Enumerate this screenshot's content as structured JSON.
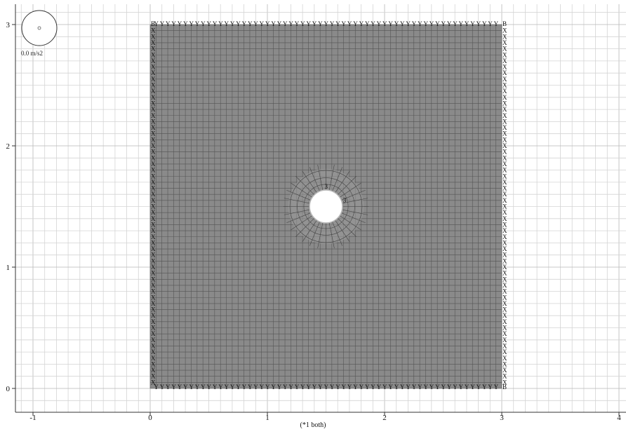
{
  "acceleration": {
    "label": "0.0 m/s2"
  },
  "axes": {
    "x_ticks": [
      "-1",
      "0",
      "1",
      "2",
      "3",
      "4"
    ],
    "y_ticks": [
      "0",
      "1",
      "2",
      "3"
    ],
    "x_caption": "(*1 both)"
  },
  "model": {
    "plate": {
      "x_range": [
        0,
        3
      ],
      "y_range": [
        0,
        3
      ]
    },
    "hole": {
      "center": [
        1.5,
        1.5
      ],
      "radius": 0.14
    },
    "hole_labels": [
      "3",
      "3"
    ],
    "top_boundary_char": "Y",
    "bottom_boundary_char": "Y",
    "left_boundary_char": "X",
    "right_boundary_char": "X",
    "corner_char": "B"
  },
  "colors": {
    "plate": "#8a8a8a",
    "mesh_line": "#555555",
    "grid_minor": "#d4d4d4",
    "grid_major": "#b8b8b8",
    "axis": "#333333"
  }
}
